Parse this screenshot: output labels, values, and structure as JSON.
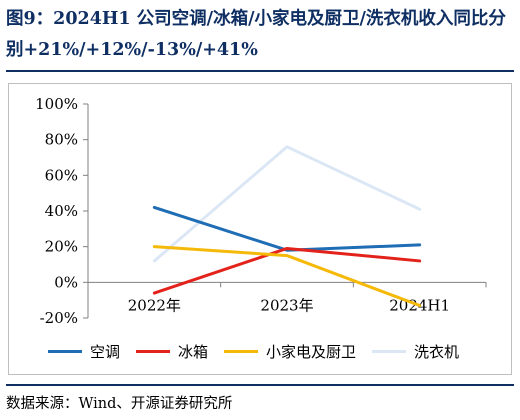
{
  "title": "图9：2024H1 公司空调/冰箱/小家电及厨卫/洗衣机收入同比分别+21%/+12%/-13%/+41%",
  "source": "数据来源：Wind、开源证券研究所",
  "chart_data": {
    "type": "line",
    "categories": [
      "2022年",
      "2023年",
      "2024H1"
    ],
    "y_unit": "%",
    "ylim": [
      -20,
      100
    ],
    "yticks": [
      -20,
      0,
      20,
      40,
      60,
      80,
      100
    ],
    "grid": false,
    "legend_position": "bottom",
    "series": [
      {
        "name": "空调",
        "color": "#1f6db5",
        "values": [
          42,
          18,
          21
        ]
      },
      {
        "name": "冰箱",
        "color": "#e3231b",
        "values": [
          -6,
          19,
          12
        ]
      },
      {
        "name": "小家电及厨卫",
        "color": "#f5b90a",
        "values": [
          20,
          15,
          -13
        ]
      },
      {
        "name": "洗衣机",
        "color": "#dbe7f5",
        "values": [
          12,
          76,
          41
        ]
      }
    ]
  }
}
